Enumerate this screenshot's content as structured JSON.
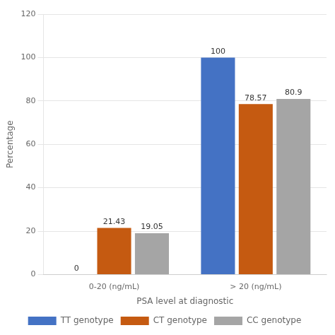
{
  "chart_data": {
    "type": "bar",
    "categories": [
      "0-20 (ng/mL)",
      "> 20 (ng/mL)"
    ],
    "series": [
      {
        "name": "TT genotype",
        "color": "#4472C4",
        "values": [
          0,
          100
        ]
      },
      {
        "name": "CT genotype",
        "color": "#C55A11",
        "values": [
          21.43,
          78.57
        ]
      },
      {
        "name": "CC genotype",
        "color": "#A5A5A5",
        "values": [
          19.05,
          80.95
        ],
        "value_labels": [
          "19.05",
          "80.9"
        ]
      }
    ],
    "x_label": "PSA level at diagnostic",
    "y_label": "Percentage",
    "ylim": [
      0,
      120
    ],
    "yticks": [
      0,
      20,
      40,
      60,
      80,
      100,
      120
    ],
    "grid": true,
    "legend": "bottom",
    "data_labels": true
  }
}
